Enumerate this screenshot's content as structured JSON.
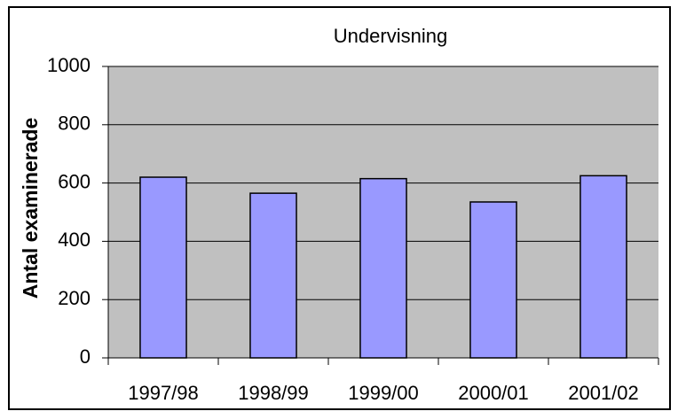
{
  "chart_data": {
    "type": "bar",
    "title": "Undervisning",
    "y_label": "Antal examinerade",
    "categories": [
      "1997/98",
      "1998/99",
      "1999/00",
      "2000/01",
      "2001/02"
    ],
    "values": [
      620,
      565,
      615,
      535,
      625
    ],
    "color": "#9999ff",
    "plot_background": "#c0c0c0",
    "ylim": [
      0,
      1000
    ],
    "yticks": [
      0,
      200,
      400,
      600,
      800,
      1000
    ],
    "grid": true
  }
}
